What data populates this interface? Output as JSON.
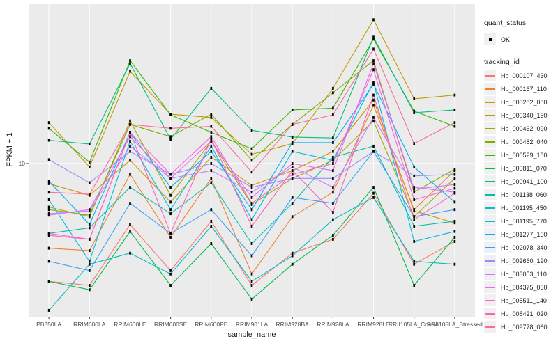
{
  "chart_data": {
    "type": "line",
    "title": "",
    "xlabel": "sample_name",
    "ylabel": "FPKM + 1",
    "y_scale": "log10",
    "ylim": [
      1,
      110
    ],
    "y_ticks": [
      {
        "value": 10,
        "label": "10"
      }
    ],
    "grid": "white major gridlines on gray panel",
    "legend_position": "right",
    "categories": [
      "PB350LA",
      "RRIM600LA",
      "RRIM600LE",
      "RRIM600SE",
      "RRIM600PE",
      "RRIM901LA",
      "RRIM928BA",
      "RRIM928LA",
      "RRIM928LE",
      "RRII105LA_Control",
      "RRII105LA_Stressed"
    ],
    "quant_status": {
      "title": "quant_status",
      "items": [
        {
          "label": "OK",
          "marker": "black-point"
        }
      ]
    },
    "tracking_legend_title": "tracking_id",
    "series": [
      {
        "name": "Hb_000107_430",
        "color": "#F8766D",
        "values": [
          1.7,
          1.6,
          4.0,
          2.0,
          4.2,
          1.6,
          2.6,
          3.2,
          6.4,
          2.2,
          3.1
        ]
      },
      {
        "name": "Hb_000167_110",
        "color": "#EA8331",
        "values": [
          2.8,
          2.7,
          8.5,
          3.3,
          8.0,
          1.9,
          4.5,
          6.5,
          24,
          5.0,
          9.0
        ]
      },
      {
        "name": "Hb_000282_080",
        "color": "#D89000",
        "values": [
          7.4,
          6.2,
          10.5,
          5.6,
          11,
          7.2,
          9.0,
          12,
          26,
          4.9,
          4.1
        ]
      },
      {
        "name": "Hb_000340_150",
        "color": "#C09B00",
        "values": [
          18.5,
          9.5,
          40,
          21,
          20,
          11.5,
          13.5,
          31,
          87,
          26.5,
          28
        ]
      },
      {
        "name": "Hb_000462_090",
        "color": "#A3A500",
        "values": [
          5.2,
          4.5,
          19,
          6.2,
          14,
          5.4,
          8.0,
          10.5,
          19,
          4.5,
          8.0
        ]
      },
      {
        "name": "Hb_000482_040",
        "color": "#7CAE00",
        "values": [
          5.0,
          4.6,
          18,
          15,
          21,
          10.5,
          18,
          29,
          47,
          6.5,
          9.2
        ]
      },
      {
        "name": "Hb_000529_180",
        "color": "#39B600",
        "values": [
          17,
          10.2,
          47,
          20.8,
          16,
          12.5,
          22.4,
          23,
          65,
          22,
          17.5
        ]
      },
      {
        "name": "Hb_000811_070",
        "color": "#00BB4E",
        "values": [
          1.7,
          1.5,
          3.6,
          1.6,
          3.0,
          1.3,
          2.2,
          3.4,
          7.0,
          1.6,
          3.3
        ]
      },
      {
        "name": "Hb_000941_100",
        "color": "#00BF7D",
        "values": [
          14.2,
          13.4,
          45,
          14.4,
          31,
          16.5,
          14.9,
          14.7,
          67,
          21.5,
          22.4
        ]
      },
      {
        "name": "Hb_001138_060",
        "color": "#00C1A3",
        "values": [
          3.5,
          3.8,
          7.0,
          4.7,
          7.5,
          3.0,
          5.5,
          11,
          13,
          3.9,
          4.2
        ]
      },
      {
        "name": "Hb_001195_450",
        "color": "#00BFC4",
        "values": [
          1.1,
          2.2,
          2.6,
          1.9,
          3.9,
          1.7,
          2.5,
          4.3,
          6.0,
          2.3,
          2.2
        ]
      },
      {
        "name": "Hb_001195_770",
        "color": "#00BAE0",
        "values": [
          5.8,
          2.3,
          14,
          5.0,
          13,
          4.3,
          12,
          10.5,
          34,
          3.1,
          3.6
        ]
      },
      {
        "name": "Hb_001277_100",
        "color": "#00B0F6",
        "values": [
          7.7,
          4.0,
          16,
          7.0,
          12,
          5.0,
          13.7,
          13.7,
          33,
          9.5,
          5.6
        ]
      },
      {
        "name": "Hb_002078_340",
        "color": "#35A2FF",
        "values": [
          2.3,
          2.0,
          5.5,
          3.5,
          5.0,
          2.5,
          6.0,
          5.5,
          12,
          4.5,
          5.0
        ]
      },
      {
        "name": "Hb_002660_190",
        "color": "#9590FF",
        "values": [
          10.6,
          7.5,
          12,
          8.5,
          10,
          7.0,
          8.0,
          8.0,
          12,
          8.3,
          8.5
        ]
      },
      {
        "name": "Hb_003053_110",
        "color": "#C77CFF",
        "values": [
          4.7,
          4.9,
          13,
          8.0,
          9.0,
          6.5,
          9.5,
          7.0,
          20,
          7.0,
          6.5
        ]
      },
      {
        "name": "Hb_004375_050",
        "color": "#E76BF3",
        "values": [
          4.6,
          5.0,
          15,
          8.0,
          14,
          6.0,
          10,
          9.0,
          45,
          6.8,
          7.3
        ]
      },
      {
        "name": "Hb_005511_140",
        "color": "#FA62DB",
        "values": [
          3.5,
          3.2,
          16,
          8.5,
          15,
          5.5,
          8.5,
          10,
          41,
          5.8,
          6.9
        ]
      },
      {
        "name": "Hb_008421_020",
        "color": "#FF62BC",
        "values": [
          3.4,
          3.2,
          16,
          3.5,
          14.5,
          3.9,
          9.0,
          4.8,
          28,
          4.3,
          6.4
        ]
      },
      {
        "name": "Hb_009778_060",
        "color": "#FF6A98",
        "values": [
          6.5,
          6.3,
          18,
          17,
          17.5,
          8.8,
          18,
          20.8,
          56,
          13.5,
          18.5
        ]
      }
    ]
  },
  "panel": {
    "bg": "#EBEBEB",
    "grid_color": "#FFFFFF",
    "point_color": "#000000",
    "tick_color": "#333333",
    "tick_label_color": "#4D4D4D",
    "text_color": "#1A1A1A",
    "legend_key_bg": "#F0F0F0"
  }
}
